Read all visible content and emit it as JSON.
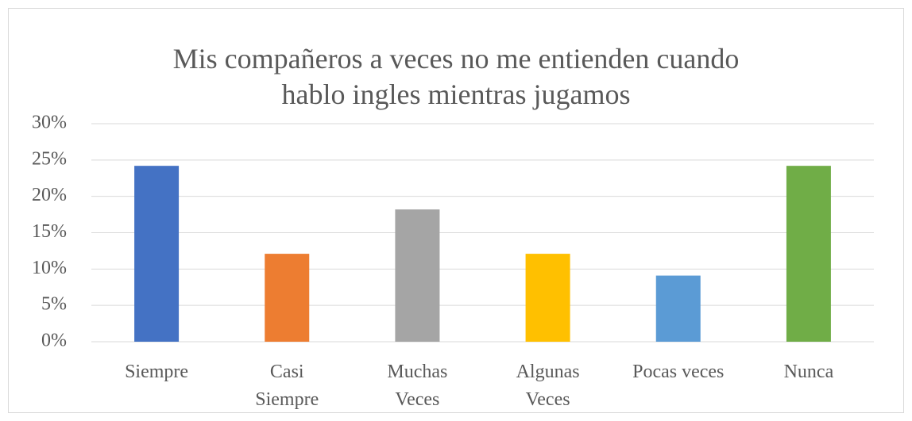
{
  "chart_data": {
    "type": "bar",
    "title": "Mis compañeros a veces no me entienden cuando hablo ingles mientras jugamos",
    "categories": [
      "Siempre",
      "Casi Siempre",
      "Muchas Veces",
      "Algunas Veces",
      "Pocas veces",
      "Nunca"
    ],
    "values": [
      24.2,
      12.1,
      18.2,
      12.1,
      9.1,
      24.2
    ],
    "colors": [
      "#4472c4",
      "#ed7d31",
      "#a5a5a5",
      "#ffc000",
      "#5b9bd5",
      "#70ad47"
    ],
    "ylim": [
      0,
      30
    ],
    "yticks": [
      {
        "value": 0,
        "label": "0%"
      },
      {
        "value": 5,
        "label": "5%"
      },
      {
        "value": 10,
        "label": "10%"
      },
      {
        "value": 15,
        "label": "15%"
      },
      {
        "value": 20,
        "label": "20%"
      },
      {
        "value": 25,
        "label": "25%"
      },
      {
        "value": 30,
        "label": "30%"
      }
    ],
    "grid": true
  }
}
